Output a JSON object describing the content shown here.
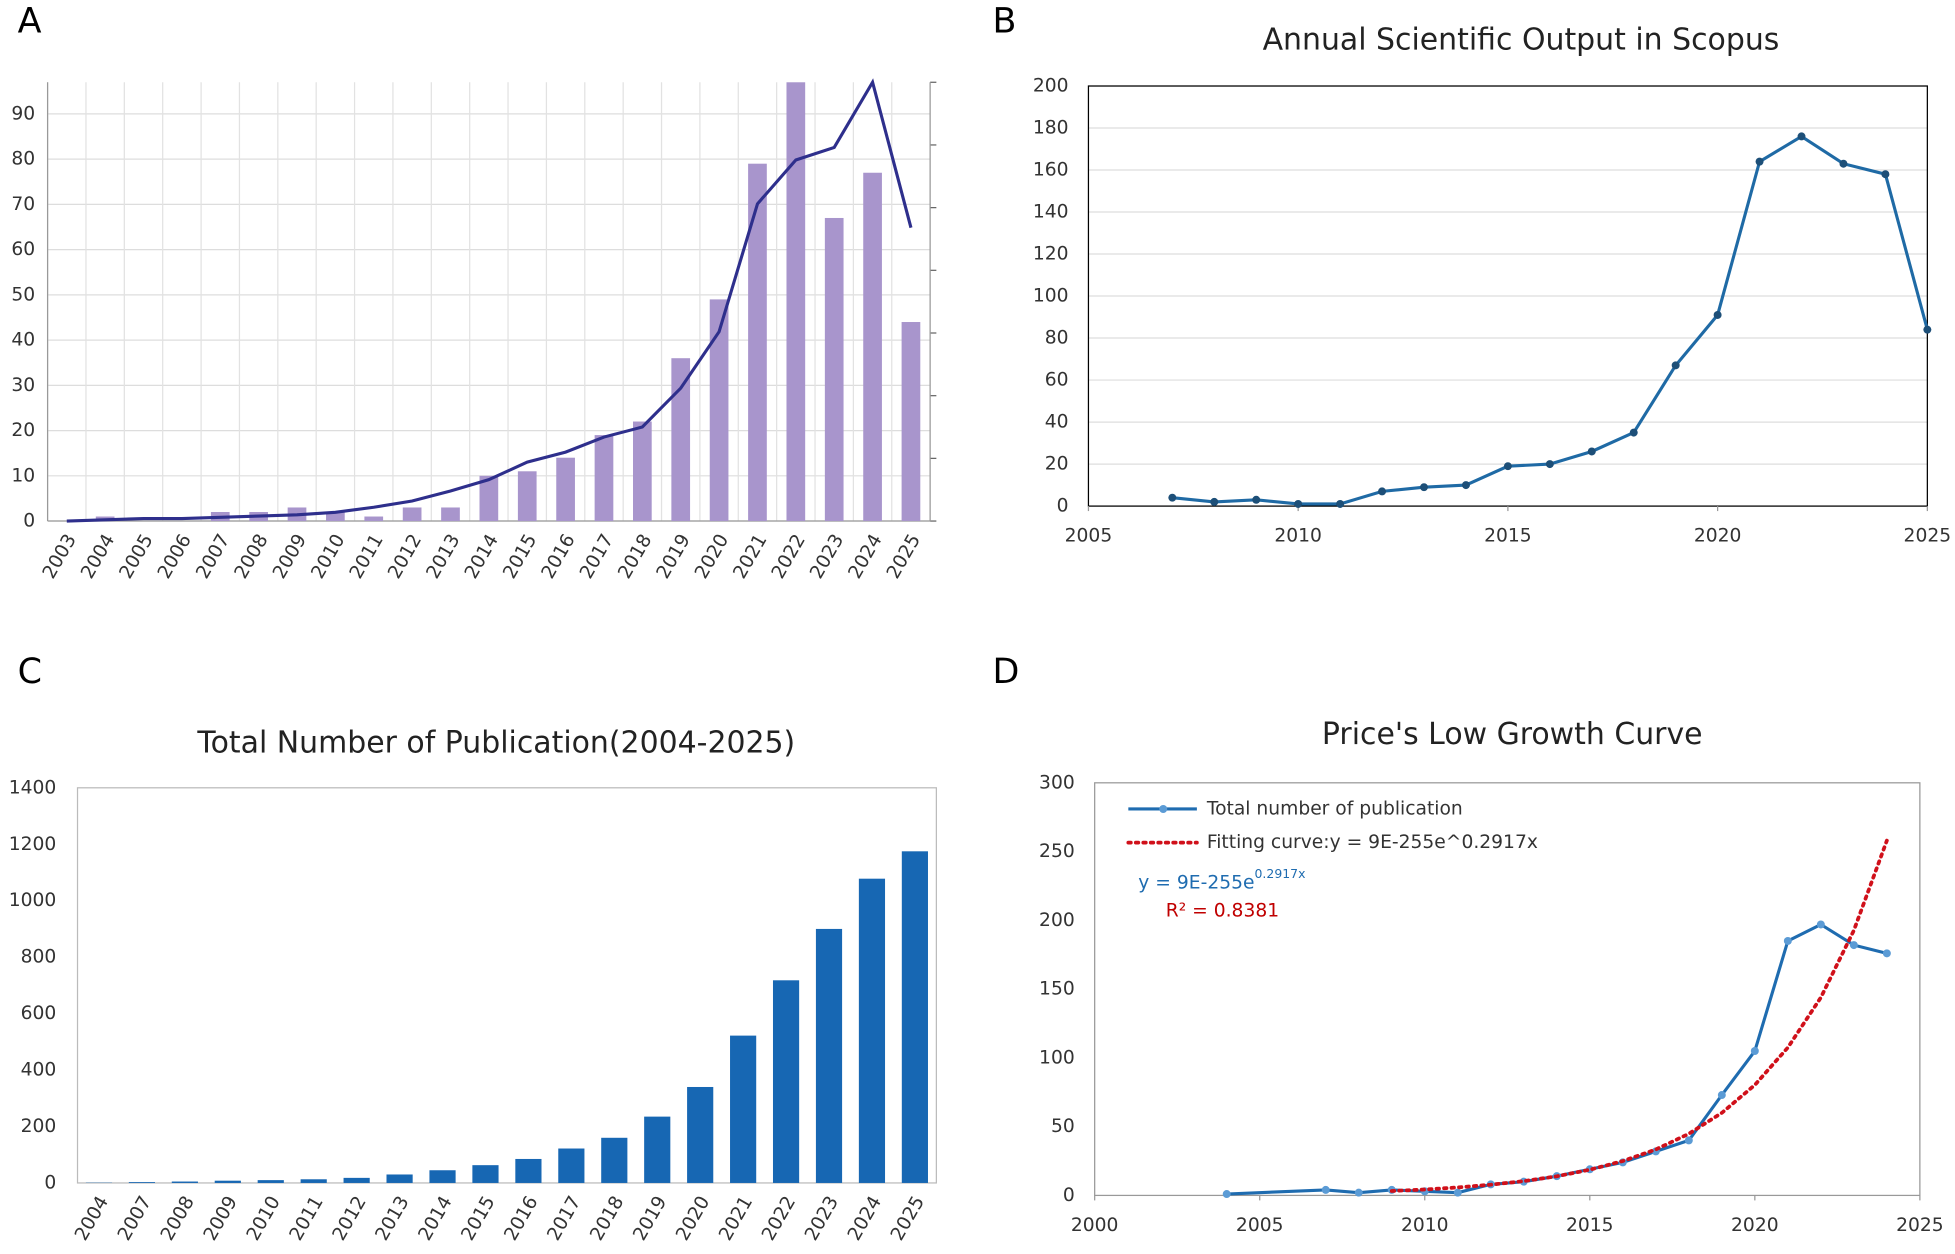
{
  "chart_data": [
    {
      "type": "bar",
      "panel": "A",
      "categories": [
        "2003",
        "2004",
        "2005",
        "2006",
        "2007",
        "2008",
        "2009",
        "2010",
        "2011",
        "2012",
        "2013",
        "2014",
        "2015",
        "2016",
        "2017",
        "2018",
        "2019",
        "2020",
        "2021",
        "2022",
        "2023",
        "2024",
        "2025"
      ],
      "series": [
        {
          "type": "bar",
          "color": "#a895cc",
          "values": [
            0,
            1,
            0,
            0,
            2,
            2,
            3,
            2,
            1,
            3,
            3,
            10,
            11,
            14,
            19,
            22,
            36,
            49,
            79,
            97,
            67,
            77,
            44
          ]
        },
        {
          "type": "line",
          "axis": "y2",
          "color": "#2e2f8c",
          "values": [
            0,
            0.02,
            0.04,
            0.04,
            0.06,
            0.08,
            0.1,
            0.14,
            0.22,
            0.32,
            0.48,
            0.66,
            0.94,
            1.1,
            1.34,
            1.5,
            2.12,
            3.02,
            5.06,
            5.76,
            5.96,
            7,
            4.68
          ]
        }
      ],
      "ylim": [
        0,
        97
      ],
      "yticks": [
        0,
        10,
        20,
        30,
        40,
        50,
        60,
        70,
        80,
        90
      ],
      "y2lim": [
        0,
        7
      ],
      "y2ticks": [
        0,
        1,
        2,
        3,
        4,
        5,
        6,
        7
      ],
      "grid": "both"
    },
    {
      "type": "line",
      "panel": "B",
      "title": "Annual Scientific Output in Scopus",
      "x": [
        2007,
        2008,
        2009,
        2010,
        2011,
        2012,
        2013,
        2014,
        2015,
        2016,
        2017,
        2018,
        2019,
        2020,
        2021,
        2022,
        2023,
        2024,
        2025
      ],
      "series": [
        {
          "type": "line",
          "color": "#1f6aa5",
          "marker_color": "#1d4f78",
          "values": [
            4,
            2,
            3,
            1,
            1,
            7,
            9,
            10,
            19,
            20,
            26,
            35,
            67,
            91,
            164,
            176,
            163,
            158,
            84
          ]
        }
      ],
      "xlim": [
        2005,
        2025
      ],
      "xticks": [
        2005,
        2010,
        2015,
        2020,
        2025
      ],
      "ylim": [
        0,
        200
      ],
      "yticks": [
        0,
        20,
        40,
        60,
        80,
        100,
        120,
        140,
        160,
        180,
        200
      ],
      "grid": "y"
    },
    {
      "type": "bar",
      "panel": "C",
      "title": "Total Number of Publication(2004-2025)",
      "categories": [
        "2004",
        "2007",
        "2008",
        "2009",
        "2010",
        "2011",
        "2012",
        "2013",
        "2014",
        "2015",
        "2016",
        "2017",
        "2018",
        "2019",
        "2020",
        "2021",
        "2022",
        "2023",
        "2024",
        "2025"
      ],
      "series": [
        {
          "type": "bar",
          "color": "#1767b3",
          "values": [
            1,
            3,
            5,
            8,
            10,
            13,
            18,
            30,
            45,
            63,
            85,
            122,
            160,
            235,
            340,
            522,
            718,
            900,
            1078,
            1175
          ]
        }
      ],
      "ylim": [
        0,
        1400
      ],
      "yticks": [
        0,
        200,
        400,
        600,
        800,
        1000,
        1200,
        1400
      ],
      "grid": "none"
    },
    {
      "type": "line",
      "panel": "D",
      "title": "Price's Low Growth Curve",
      "series": [
        {
          "type": "line",
          "name": "Total number of publication",
          "color": "#1f6cb0",
          "marker_color": "#5b9bd5",
          "x": [
            2004,
            2007,
            2008,
            2009,
            2010,
            2011,
            2012,
            2013,
            2014,
            2015,
            2016,
            2017,
            2018,
            2019,
            2020,
            2021,
            2022,
            2023,
            2024
          ],
          "values": [
            1,
            4,
            2,
            4,
            3,
            2,
            8,
            10,
            14,
            19,
            24,
            32,
            40,
            73,
            105,
            185,
            197,
            182,
            176
          ]
        },
        {
          "type": "line",
          "name": "Fitting curve:y = 9E-255e^0.2917x",
          "color": "#d0101a",
          "dash": "dotted",
          "x": [
            2009,
            2010,
            2011,
            2012,
            2013,
            2014,
            2015,
            2016,
            2017,
            2018,
            2019,
            2020,
            2021,
            2022,
            2023,
            2024
          ],
          "values": [
            3.2,
            4.3,
            5.8,
            7.8,
            10.4,
            13.9,
            18.7,
            25,
            33.4,
            44.8,
            60,
            80.3,
            107.5,
            143.9,
            192.7,
            258
          ]
        }
      ],
      "xlim": [
        2000,
        2025
      ],
      "xticks": [
        2000,
        2005,
        2010,
        2015,
        2020,
        2025
      ],
      "ylim": [
        0,
        300
      ],
      "yticks": [
        0,
        50,
        100,
        150,
        200,
        250,
        300
      ],
      "grid": "none",
      "legend": "upper left",
      "equation": {
        "text": "y = 9E-255e",
        "exponent": "0.2917x",
        "color": "#1f6cb0"
      },
      "r_squared": {
        "text": "R² = 0.8381",
        "color": "#c00000"
      }
    }
  ]
}
